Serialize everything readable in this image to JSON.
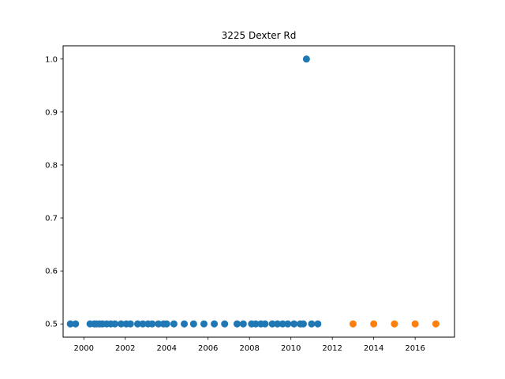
{
  "chart_data": {
    "type": "scatter",
    "title": "3225 Dexter Rd",
    "xlabel": "",
    "ylabel": "",
    "xlim": [
      1999.0,
      2017.9
    ],
    "ylim": [
      0.475,
      1.025
    ],
    "xticks": [
      2000,
      2002,
      2004,
      2006,
      2008,
      2010,
      2012,
      2014,
      2016
    ],
    "yticks": [
      0.5,
      0.6,
      0.7,
      0.8,
      0.9,
      1.0
    ],
    "ytick_labels": [
      "0.5",
      "0.6",
      "0.7",
      "0.8",
      "0.9",
      "1.0"
    ],
    "grid": false,
    "series": [
      {
        "color": "#1f77b4",
        "points": [
          [
            1999.35,
            0.5
          ],
          [
            1999.6,
            0.5
          ],
          [
            2000.3,
            0.5
          ],
          [
            2000.5,
            0.5
          ],
          [
            2000.6,
            0.5
          ],
          [
            2000.75,
            0.5
          ],
          [
            2000.9,
            0.5
          ],
          [
            2001.1,
            0.5
          ],
          [
            2001.3,
            0.5
          ],
          [
            2001.5,
            0.5
          ],
          [
            2001.8,
            0.5
          ],
          [
            2002.05,
            0.5
          ],
          [
            2002.25,
            0.5
          ],
          [
            2002.6,
            0.5
          ],
          [
            2002.85,
            0.5
          ],
          [
            2003.1,
            0.5
          ],
          [
            2003.3,
            0.5
          ],
          [
            2003.6,
            0.5
          ],
          [
            2003.85,
            0.5
          ],
          [
            2004.0,
            0.5
          ],
          [
            2004.35,
            0.5
          ],
          [
            2004.85,
            0.5
          ],
          [
            2005.3,
            0.5
          ],
          [
            2005.8,
            0.5
          ],
          [
            2006.3,
            0.5
          ],
          [
            2006.8,
            0.5
          ],
          [
            2007.4,
            0.5
          ],
          [
            2007.7,
            0.5
          ],
          [
            2008.1,
            0.5
          ],
          [
            2008.3,
            0.5
          ],
          [
            2008.55,
            0.5
          ],
          [
            2008.75,
            0.5
          ],
          [
            2009.1,
            0.5
          ],
          [
            2009.35,
            0.5
          ],
          [
            2009.6,
            0.5
          ],
          [
            2009.85,
            0.5
          ],
          [
            2010.15,
            0.5
          ],
          [
            2010.45,
            0.5
          ],
          [
            2010.6,
            0.5
          ],
          [
            2010.75,
            1.0
          ],
          [
            2011.0,
            0.5
          ],
          [
            2011.3,
            0.5
          ]
        ]
      },
      {
        "color": "#ff7f0e",
        "points": [
          [
            2013.0,
            0.5
          ],
          [
            2014.0,
            0.5
          ],
          [
            2015.0,
            0.5
          ],
          [
            2016.0,
            0.5
          ],
          [
            2017.0,
            0.5
          ]
        ]
      }
    ]
  }
}
